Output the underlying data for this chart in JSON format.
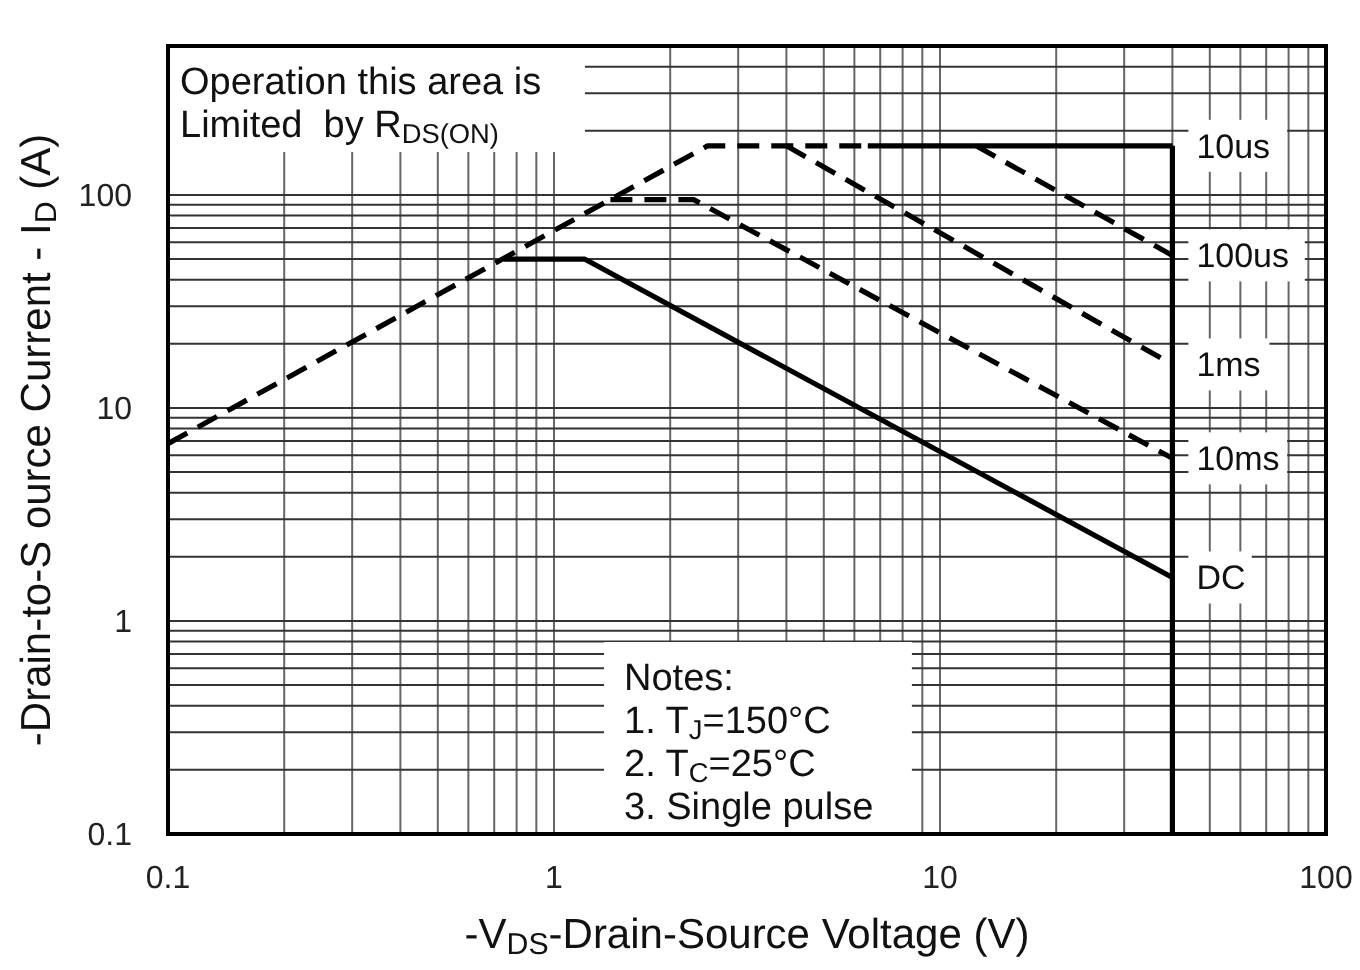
{
  "chart_data": {
    "type": "line",
    "xlabel": "-V$_{DS}$-Drain-Source Voltage (V)",
    "ylabel": "-Drain-to-S ource Current - I$_{D}$ (A)",
    "log": "xy",
    "grid": true,
    "xlim": [
      0.1,
      100
    ],
    "ylim": [
      0.1,
      500
    ],
    "xticks": [
      0.1,
      {
        "value": 0.2,
        "label": null
      },
      {
        "value": 0.3,
        "label": null
      },
      {
        "value": 0.4,
        "label": null
      },
      {
        "value": 0.5,
        "label": null
      },
      {
        "value": 0.6,
        "label": null
      },
      {
        "value": 0.7,
        "label": null
      },
      {
        "value": 0.8,
        "label": null
      },
      {
        "value": 0.9,
        "label": null
      },
      1,
      {
        "value": 2,
        "label": null
      },
      {
        "value": 3,
        "label": null
      },
      {
        "value": 4,
        "label": null
      },
      {
        "value": 5,
        "label": null
      },
      {
        "value": 6,
        "label": null
      },
      {
        "value": 7,
        "label": null
      },
      {
        "value": 8,
        "label": null
      },
      {
        "value": 9,
        "label": null
      },
      10,
      {
        "value": 20,
        "label": null
      },
      {
        "value": 30,
        "label": null
      },
      {
        "value": 40,
        "label": null
      },
      {
        "value": 50,
        "label": null
      },
      {
        "value": 60,
        "label": null
      },
      {
        "value": 70,
        "label": null
      },
      {
        "value": 80,
        "label": null
      },
      {
        "value": 90,
        "label": null
      },
      100
    ],
    "yticks": [
      0.1,
      {
        "value": 0.2,
        "label": null
      },
      {
        "value": 0.3,
        "label": null
      },
      {
        "value": 0.4,
        "label": null
      },
      {
        "value": 0.5,
        "label": null
      },
      {
        "value": 0.6,
        "label": null
      },
      {
        "value": 0.7,
        "label": null
      },
      {
        "value": 0.8,
        "label": null
      },
      {
        "value": 0.9,
        "label": null
      },
      1,
      {
        "value": 2,
        "label": null
      },
      {
        "value": 3,
        "label": null
      },
      {
        "value": 4,
        "label": null
      },
      {
        "value": 5,
        "label": null
      },
      {
        "value": 6,
        "label": null
      },
      {
        "value": 7,
        "label": null
      },
      {
        "value": 8,
        "label": null
      },
      {
        "value": 9,
        "label": null
      },
      10,
      {
        "value": 20,
        "label": null
      },
      {
        "value": 30,
        "label": null
      },
      {
        "value": 40,
        "label": null
      },
      {
        "value": 50,
        "label": null
      },
      {
        "value": 60,
        "label": null
      },
      {
        "value": 70,
        "label": null
      },
      {
        "value": 80,
        "label": null
      },
      {
        "value": 90,
        "label": null
      },
      100,
      {
        "value": 200,
        "label": null
      },
      {
        "value": 300,
        "label": null
      },
      {
        "value": 400,
        "label": null
      },
      {
        "value": 500,
        "label": null
      }
    ],
    "series": [
      {
        "color": "#000000",
        "line_style": "dashed",
        "x": [
          0.1,
          2.5,
          6.5
        ],
        "values": [
          6.8,
          170,
          170
        ]
      },
      {
        "name": "10us",
        "color": "#000000",
        "line_style": "solid",
        "x": [
          6.5,
          40
        ],
        "values": [
          170,
          170
        ]
      },
      {
        "color": "#000000",
        "line_style": "solid",
        "x": [
          40,
          40
        ],
        "values": [
          170,
          0.1
        ]
      },
      {
        "name": "100us",
        "color": "#000000",
        "line_style": "dashed",
        "x": [
          12.4,
          40
        ],
        "values": [
          170,
          52
        ]
      },
      {
        "name": "1ms",
        "color": "#000000",
        "line_style": "dashed",
        "x": [
          4,
          40
        ],
        "values": [
          170,
          16
        ]
      },
      {
        "name": "10ms",
        "color": "#000000",
        "line_style": "dashed",
        "x": [
          1.4,
          2.3,
          40
        ],
        "values": [
          95,
          95,
          5.8
        ]
      },
      {
        "name": "DC",
        "color": "#000000",
        "line_style": "solid",
        "x": [
          0.74,
          1.2,
          40
        ],
        "values": [
          50,
          50,
          1.6
        ]
      }
    ],
    "annotations": [
      "Operation this area is\nLimited  by R$_{DS(ON)}$",
      "Notes:\n1. T$_{J}$=150°C\n2. T$_{C}$=25°C\n3. Single pulse"
    ]
  }
}
